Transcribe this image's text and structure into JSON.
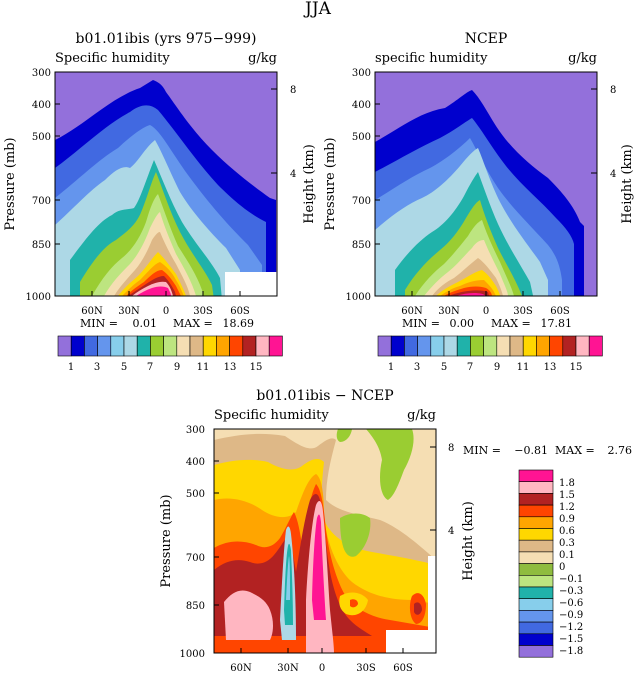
{
  "page": {
    "title": "JJA"
  },
  "chart_data": [
    {
      "type": "heatmap",
      "title": "b01.01ibis (yrs 975−999)",
      "subtitle_left": "Specific humidity",
      "subtitle_right": "g/kg",
      "ylabel": "Pressure (mb)",
      "ylabel_right": "Height (km)",
      "y_ticks": [
        "300",
        "400",
        "500",
        "700",
        "850",
        "1000"
      ],
      "y_ticks_right": [
        "8",
        "4"
      ],
      "x_ticks": [
        "60N",
        "30N",
        "0",
        "30S",
        "60S"
      ],
      "stats": {
        "min_label": "MIN =",
        "min": "0.01",
        "max_label": "MAX =",
        "max": "18.69"
      },
      "legend_labels": [
        "1",
        "3",
        "5",
        "7",
        "9",
        "11",
        "13",
        "15"
      ]
    },
    {
      "type": "heatmap",
      "title": "NCEP",
      "subtitle_left": "specific humidity",
      "subtitle_right": "g/kg",
      "ylabel": "Pressure (mb)",
      "ylabel_right": "Height (km)",
      "y_ticks": [
        "300",
        "400",
        "500",
        "700",
        "850",
        "1000"
      ],
      "y_ticks_right": [
        "8",
        "4"
      ],
      "x_ticks": [
        "60N",
        "30N",
        "0",
        "30S",
        "60S"
      ],
      "stats": {
        "min_label": "MIN =",
        "min": "0.00",
        "max_label": "MAX =",
        "max": "17.81"
      },
      "legend_labels": [
        "1",
        "3",
        "5",
        "7",
        "9",
        "11",
        "13",
        "15"
      ]
    },
    {
      "type": "heatmap",
      "title": "b01.01ibis − NCEP",
      "subtitle_left": "Specific humidity",
      "subtitle_right": "g/kg",
      "ylabel": "Pressure (mb)",
      "ylabel_right": "Height (km)",
      "y_ticks": [
        "300",
        "400",
        "500",
        "700",
        "850",
        "1000"
      ],
      "y_ticks_right": [
        "8",
        "4"
      ],
      "x_ticks": [
        "60N",
        "30N",
        "0",
        "30S",
        "60S"
      ],
      "stats": {
        "min_label": "MIN =",
        "min": "−0.81",
        "max_label": "MAX =",
        "max": "2.76"
      },
      "legend_labels": [
        "1.8",
        "1.5",
        "1.2",
        "0.9",
        "0.6",
        "0.3",
        "0.1",
        "0",
        "−0.1",
        "−0.3",
        "−0.6",
        "−0.9",
        "−1.2",
        "−1.5",
        "−1.8"
      ]
    }
  ],
  "colors": {
    "abs_scale": [
      "#9370DB",
      "#0000CD",
      "#4169E1",
      "#6495ED",
      "#87CEEB",
      "#ADD8E6",
      "#20B2AA",
      "#9ACD32",
      "#BDE580",
      "#F5DEB3",
      "#DEB887",
      "#FFD700",
      "#FFA500",
      "#FF4500",
      "#B22222",
      "#FFB6C1",
      "#FF1493"
    ],
    "diff_scale": [
      "#FF1493",
      "#FFB6C1",
      "#B22222",
      "#FF4500",
      "#FFA500",
      "#FFD700",
      "#DEB887",
      "#F5DEB3",
      "#8FBC3F",
      "#BDE580",
      "#20B2AA",
      "#87CEEB",
      "#6495ED",
      "#4169E1",
      "#0000CD",
      "#9370DB"
    ]
  }
}
